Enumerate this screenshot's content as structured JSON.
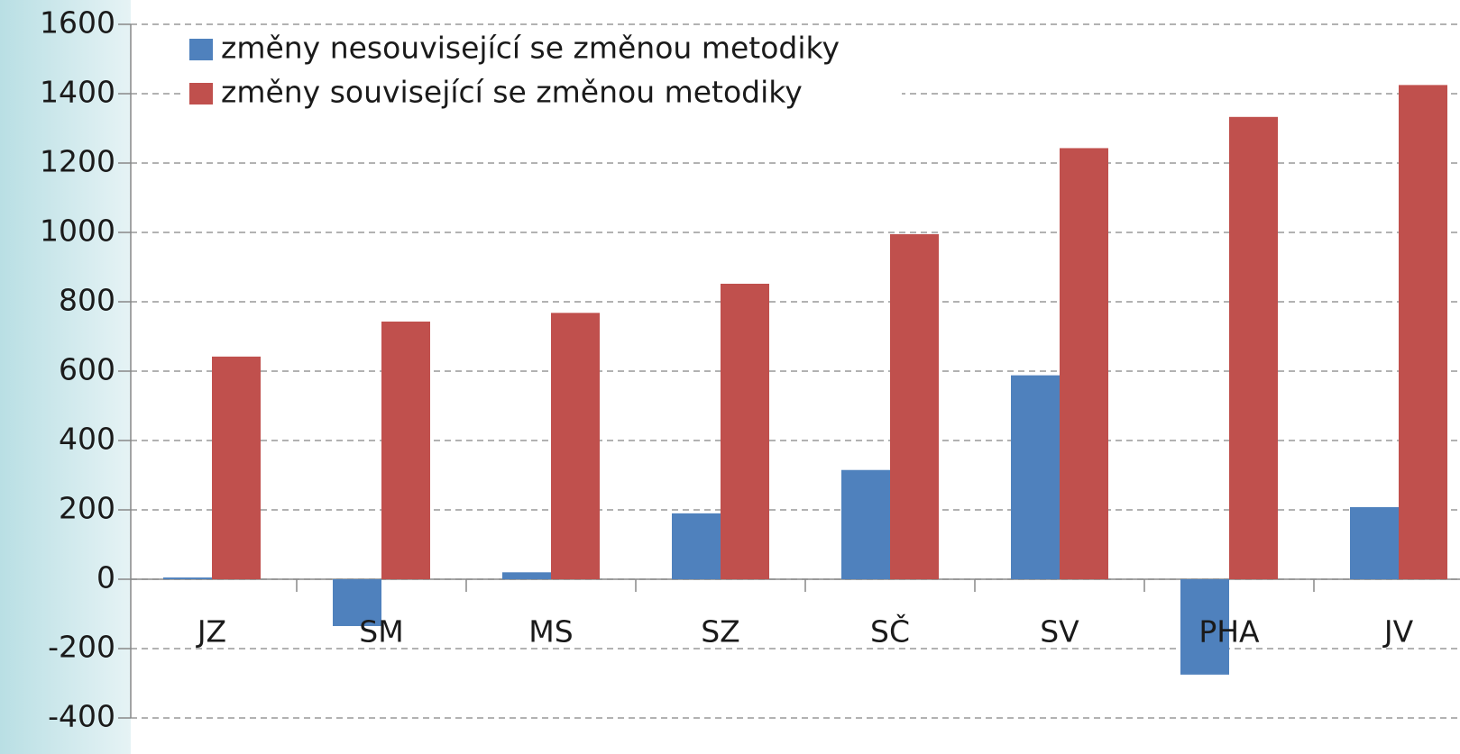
{
  "chart_data": {
    "type": "bar",
    "categories": [
      "JZ",
      "SM",
      "MS",
      "SZ",
      "SČ",
      "SV",
      "PHA",
      "JV"
    ],
    "series": [
      {
        "name": "změny nesouvisející se změnou metodiky",
        "color": "#4f81bd",
        "values": [
          5,
          -135,
          20,
          190,
          315,
          588,
          -275,
          208
        ]
      },
      {
        "name": "změny související se změnou metodiky",
        "color": "#c0504d",
        "values": [
          642,
          743,
          768,
          852,
          995,
          1243,
          1333,
          1425
        ]
      }
    ],
    "ylim": [
      -400,
      1600
    ],
    "yticks": [
      -400,
      -200,
      0,
      200,
      400,
      600,
      800,
      1000,
      1200,
      1400,
      1600
    ],
    "grid": true,
    "legend": "top-left"
  }
}
